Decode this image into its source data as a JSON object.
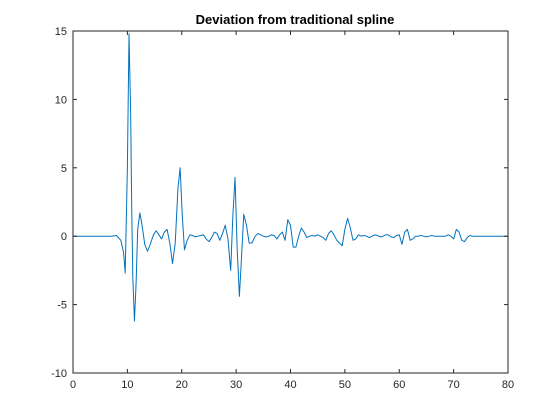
{
  "chart_data": {
    "type": "line",
    "title": "Deviation from traditional spline",
    "xlabel": "",
    "ylabel": "",
    "xlim": [
      0,
      80
    ],
    "ylim": [
      -10,
      15
    ],
    "x_ticks": [
      0,
      10,
      20,
      30,
      40,
      50,
      60,
      70,
      80
    ],
    "y_ticks": [
      -10,
      -5,
      0,
      5,
      10,
      15
    ],
    "grid": false,
    "legend": "none",
    "series": [
      {
        "color": "#0072bd",
        "x": [
          0,
          7.0,
          8.0,
          8.8,
          9.3,
          9.6,
          10.0,
          10.3,
          10.6,
          10.8,
          11.0,
          11.3,
          11.6,
          11.9,
          12.3,
          12.7,
          13.2,
          13.7,
          14.2,
          14.8,
          15.3,
          15.8,
          16.3,
          16.8,
          17.3,
          17.8,
          18.3,
          18.8,
          19.3,
          19.7,
          20.1,
          20.5,
          21.0,
          21.5,
          22.0,
          22.5,
          23.0,
          23.5,
          24.0,
          24.5,
          25.0,
          25.5,
          26.0,
          26.5,
          27.0,
          27.5,
          28.0,
          28.5,
          29.0,
          29.4,
          29.8,
          30.2,
          30.6,
          31.0,
          31.4,
          31.9,
          32.4,
          32.9,
          33.5,
          34.0,
          34.5,
          35.0,
          35.5,
          36.0,
          36.5,
          37.0,
          37.5,
          38.0,
          38.5,
          39.0,
          39.5,
          40.0,
          40.5,
          41.0,
          41.5,
          42.0,
          42.5,
          43.0,
          43.5,
          44.0,
          44.5,
          45.0,
          45.5,
          46.0,
          46.5,
          47.0,
          47.5,
          48.0,
          48.5,
          49.0,
          49.5,
          50.0,
          50.5,
          51.0,
          51.5,
          52.0,
          52.5,
          53.0,
          53.5,
          54.0,
          54.5,
          55.0,
          55.5,
          56.0,
          56.5,
          57.0,
          57.5,
          58.0,
          58.5,
          59.0,
          59.5,
          60.0,
          60.5,
          61.0,
          61.5,
          62.0,
          62.5,
          63.0,
          63.5,
          64.0,
          64.5,
          65.0,
          65.5,
          66.0,
          66.5,
          67.0,
          67.5,
          68.0,
          68.5,
          69.0,
          69.5,
          70.0,
          70.5,
          71.0,
          71.5,
          72.0,
          72.5,
          73.0,
          73.5,
          74.0,
          74.5,
          75.0,
          75.5,
          80.0
        ],
        "y": [
          0,
          0,
          0.05,
          -0.3,
          -1.2,
          -2.7,
          5.0,
          14.8,
          9.0,
          2.0,
          -3.0,
          -6.2,
          -3.5,
          0.5,
          1.7,
          0.8,
          -0.6,
          -1.1,
          -0.6,
          0.1,
          0.4,
          0.1,
          -0.2,
          0.3,
          0.5,
          -0.5,
          -2.0,
          -0.5,
          3.5,
          5.0,
          1.5,
          -1.0,
          -0.3,
          0.1,
          0.05,
          -0.05,
          0,
          0.05,
          0.1,
          -0.2,
          -0.4,
          -0.1,
          0.3,
          0.2,
          -0.3,
          0.2,
          0.8,
          -0.2,
          -2.5,
          1.5,
          4.3,
          -1.0,
          -4.4,
          -1.5,
          1.6,
          0.8,
          -0.5,
          -0.5,
          0,
          0.2,
          0.1,
          0,
          -0.05,
          0,
          0.1,
          0.05,
          -0.2,
          0.1,
          0.3,
          -0.3,
          1.2,
          0.8,
          -0.8,
          -0.8,
          0,
          0.6,
          0.3,
          -0.1,
          0,
          0.05,
          0,
          0.1,
          0,
          -0.1,
          -0.3,
          0.2,
          0.4,
          0.1,
          -0.3,
          -0.5,
          -0.7,
          0.5,
          1.3,
          0.6,
          -0.3,
          -0.2,
          0.1,
          0,
          0.05,
          0,
          -0.1,
          0,
          0.1,
          0.05,
          -0.05,
          0,
          0.1,
          0.1,
          -0.05,
          -0.1,
          0.05,
          0.1,
          -0.6,
          0.3,
          0.5,
          -0.3,
          -0.2,
          0,
          0,
          0.05,
          0,
          -0.05,
          0,
          0.05,
          0,
          0,
          0,
          0,
          0,
          0.1,
          0,
          -0.2,
          0.5,
          0.3,
          -0.3,
          -0.4,
          -0.1,
          0.05,
          0,
          0,
          0,
          0,
          0,
          0
        ]
      }
    ]
  }
}
